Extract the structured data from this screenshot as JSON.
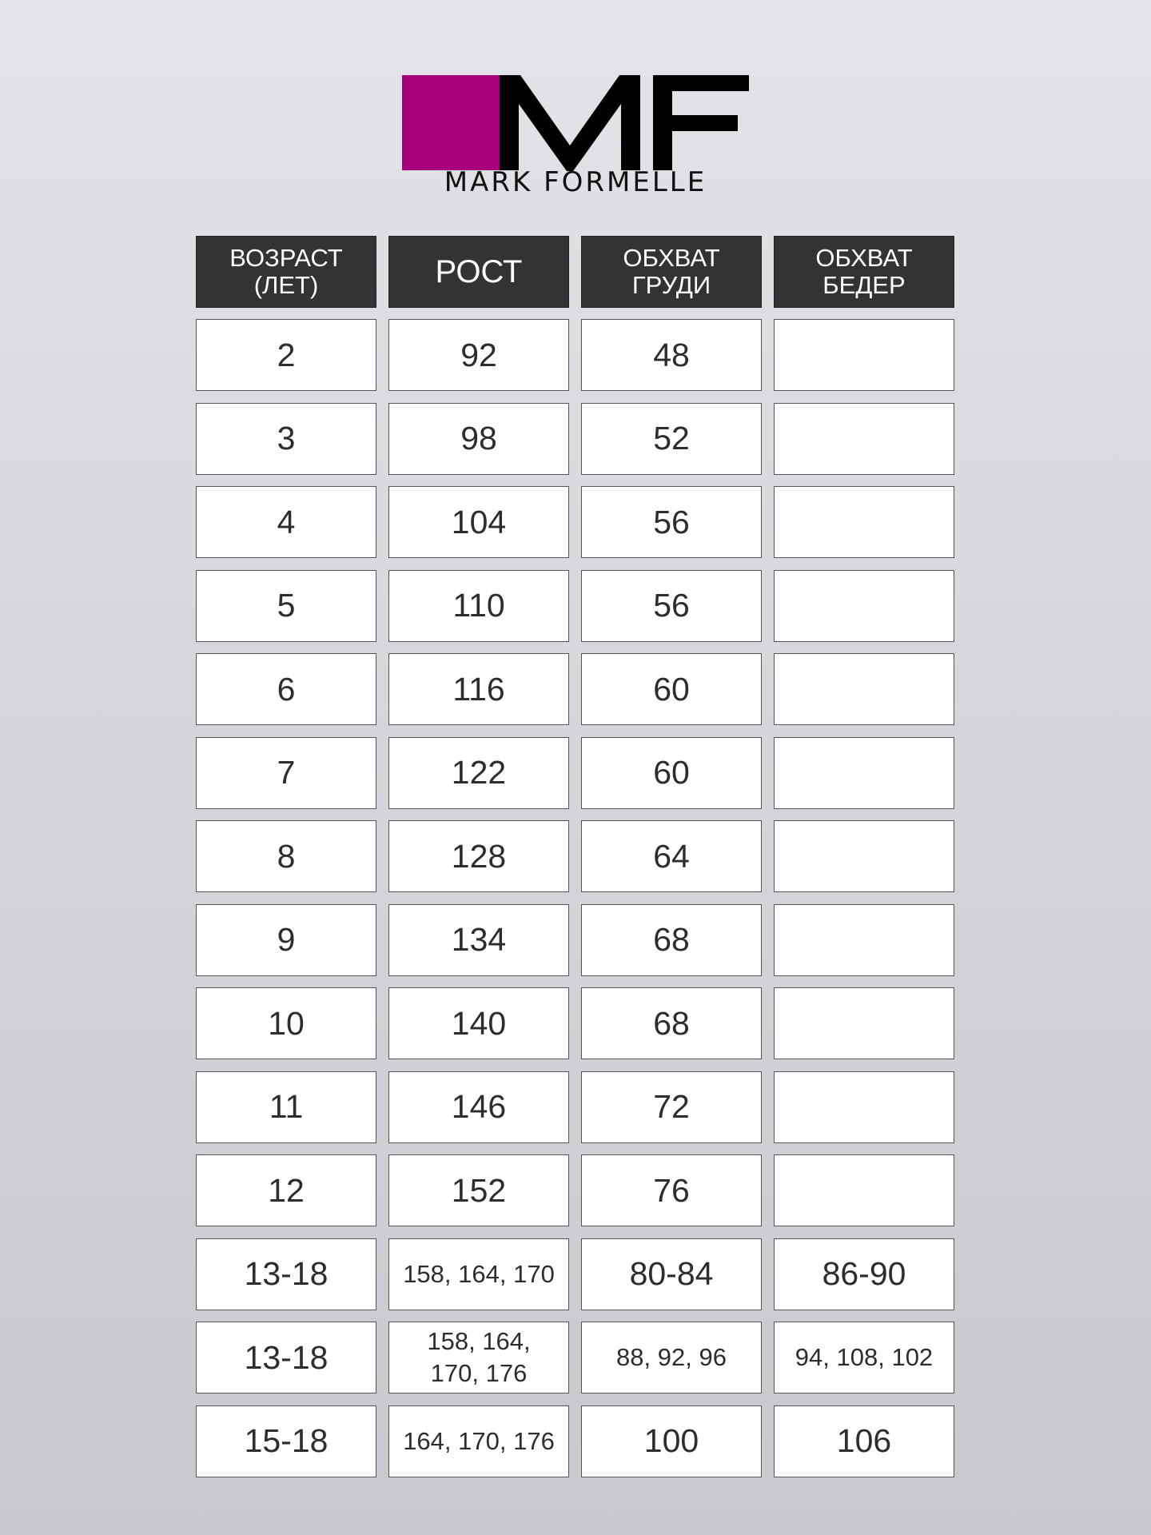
{
  "brand": {
    "name": "MARK FORMELLE",
    "monogram": "MF",
    "accent_color": "#a8007c",
    "logo_icon": "mf-logo"
  },
  "table": {
    "headers": [
      "ВОЗРАСТ (ЛЕТ)",
      "РОСТ",
      "ОБХВАТ ГРУДИ",
      "ОБХВАТ БЕДЕР"
    ],
    "header_lines": [
      [
        "ВОЗРАСТ",
        "(ЛЕТ)"
      ],
      [
        "РОСТ"
      ],
      [
        "ОБХВАТ",
        "ГРУДИ"
      ],
      [
        "ОБХВАТ",
        "БЕДЕР"
      ]
    ],
    "rows": [
      [
        "2",
        "92",
        "48",
        ""
      ],
      [
        "3",
        "98",
        "52",
        ""
      ],
      [
        "4",
        "104",
        "56",
        ""
      ],
      [
        "5",
        "110",
        "56",
        ""
      ],
      [
        "6",
        "116",
        "60",
        ""
      ],
      [
        "7",
        "122",
        "60",
        ""
      ],
      [
        "8",
        "128",
        "64",
        ""
      ],
      [
        "9",
        "134",
        "68",
        ""
      ],
      [
        "10",
        "140",
        "68",
        ""
      ],
      [
        "11",
        "146",
        "72",
        ""
      ],
      [
        "12",
        "152",
        "76",
        ""
      ],
      [
        "13-18",
        "158, 164, 170",
        "80-84",
        "86-90"
      ],
      [
        "13-18",
        "158, 164, 170, 176",
        "88, 92, 96",
        "94, 108, 102"
      ],
      [
        "15-18",
        "164, 170, 176",
        "100",
        "106"
      ]
    ]
  }
}
